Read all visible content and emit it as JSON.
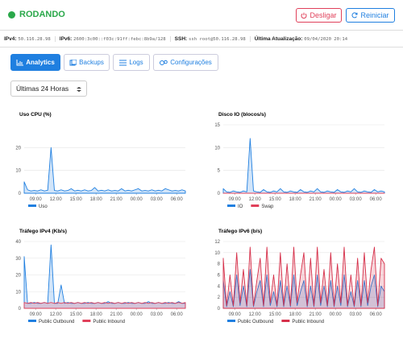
{
  "header": {
    "status": "RODANDO",
    "buttons": [
      "Desligar",
      "Reiniciar"
    ]
  },
  "info": [
    {
      "label": "IPv4:",
      "value": "50.116.28.98"
    },
    {
      "label": "IPv6:",
      "value": "2600:3c00::f03c:91ff:febc:8b9a/128"
    },
    {
      "label": "SSH:",
      "value": "ssh root@50.116.28.98"
    },
    {
      "label": "Última Atualização:",
      "value": "09/04/2020 20:14"
    }
  ],
  "tabs": [
    "Analytics",
    "Backups",
    "Logs",
    "Configurações"
  ],
  "range": "Últimas 24 Horas",
  "chart_data": [
    {
      "type": "area",
      "title": "Uso CPU (%)",
      "x": [
        0,
        0.5,
        1,
        1.5,
        2,
        2.5,
        3,
        3.5,
        4,
        4.5,
        5,
        5.5,
        6,
        6.5,
        7,
        7.5,
        8,
        8.5,
        9,
        9.5,
        10,
        10.5,
        11,
        11.5,
        12,
        12.5,
        13,
        13.5,
        14,
        14.5,
        15,
        15.5,
        16,
        16.5,
        17,
        17.5,
        18,
        18.5,
        19,
        19.5,
        20,
        20.5,
        21,
        21.5,
        22,
        22.5,
        23,
        23.5,
        24
      ],
      "xlim": [
        0,
        24
      ],
      "xticks": [
        {
          "value": 1.7,
          "label": "09:00"
        },
        {
          "value": 4.7,
          "label": "12:00"
        },
        {
          "value": 7.7,
          "label": "15:00"
        },
        {
          "value": 10.7,
          "label": "18:00"
        },
        {
          "value": 13.7,
          "label": "21:00"
        },
        {
          "value": 16.7,
          "label": "00:00"
        },
        {
          "value": 19.7,
          "label": "03:00"
        },
        {
          "value": 22.7,
          "label": "06:00"
        }
      ],
      "ylim": [
        0,
        30
      ],
      "yticks": [
        0,
        10,
        20
      ],
      "grid": true,
      "series": [
        {
          "name": "Uso",
          "color": "#1f7fe0",
          "values": [
            5,
            1.5,
            1,
            1.2,
            1,
            1.5,
            1,
            1.3,
            20,
            1.2,
            1,
            1.5,
            1,
            1.2,
            2,
            1,
            1.3,
            1,
            1.5,
            1,
            1.2,
            2.5,
            1,
            1.3,
            1,
            1.5,
            1,
            1.2,
            1,
            2,
            1,
            1.3,
            1,
            1.5,
            2,
            1,
            1.2,
            1,
            1.5,
            1,
            1.3,
            1,
            2,
            1.5,
            1,
            1.2,
            1,
            1.5,
            1
          ]
        }
      ]
    },
    {
      "type": "area",
      "title": "Disco IO (blocos/s)",
      "x": [
        0,
        0.5,
        1,
        1.5,
        2,
        2.5,
        3,
        3.5,
        4,
        4.5,
        5,
        5.5,
        6,
        6.5,
        7,
        7.5,
        8,
        8.5,
        9,
        9.5,
        10,
        10.5,
        11,
        11.5,
        12,
        12.5,
        13,
        13.5,
        14,
        14.5,
        15,
        15.5,
        16,
        16.5,
        17,
        17.5,
        18,
        18.5,
        19,
        19.5,
        20,
        20.5,
        21,
        21.5,
        22,
        22.5,
        23,
        23.5,
        24
      ],
      "xlim": [
        0,
        24
      ],
      "xticks": [
        {
          "value": 1.7,
          "label": "09:00"
        },
        {
          "value": 4.7,
          "label": "12:00"
        },
        {
          "value": 7.7,
          "label": "15:00"
        },
        {
          "value": 10.7,
          "label": "18:00"
        },
        {
          "value": 13.7,
          "label": "21:00"
        },
        {
          "value": 16.7,
          "label": "00:00"
        },
        {
          "value": 19.7,
          "label": "03:00"
        },
        {
          "value": 22.7,
          "label": "06:00"
        }
      ],
      "ylim": [
        0,
        15
      ],
      "yticks": [
        0,
        5,
        10,
        15
      ],
      "grid": true,
      "series": [
        {
          "name": "IO",
          "color": "#1f7fe0",
          "values": [
            1,
            0.3,
            0.2,
            0.5,
            0.3,
            0.2,
            0.5,
            0.3,
            12,
            0.5,
            0.3,
            0.2,
            0.8,
            0.3,
            0.2,
            0.5,
            0.3,
            1,
            0.3,
            0.2,
            0.5,
            0.3,
            0.2,
            0.8,
            0.3,
            0.2,
            0.5,
            0.3,
            1,
            0.3,
            0.2,
            0.5,
            0.3,
            0.2,
            0.8,
            0.3,
            0.2,
            0.5,
            0.3,
            1,
            0.3,
            0.2,
            0.5,
            0.3,
            0.2,
            0.8,
            0.3,
            0.5,
            0.3
          ]
        },
        {
          "name": "Swap",
          "color": "#e0405a",
          "values": [
            0,
            0,
            0,
            0,
            0,
            0,
            0,
            0,
            0,
            0,
            0,
            0,
            0,
            0,
            0,
            0,
            0,
            0,
            0,
            0,
            0,
            0,
            0,
            0,
            0,
            0,
            0,
            0,
            0,
            0,
            0,
            0,
            0,
            0,
            0,
            0,
            0,
            0,
            0,
            0,
            0,
            0,
            0,
            0,
            0,
            0,
            0,
            0,
            0
          ]
        }
      ]
    },
    {
      "type": "area",
      "title": "Tráfego IPv4 (Kb/s)",
      "x": [
        0,
        0.5,
        1,
        1.5,
        2,
        2.5,
        3,
        3.5,
        4,
        4.5,
        5,
        5.5,
        6,
        6.5,
        7,
        7.5,
        8,
        8.5,
        9,
        9.5,
        10,
        10.5,
        11,
        11.5,
        12,
        12.5,
        13,
        13.5,
        14,
        14.5,
        15,
        15.5,
        16,
        16.5,
        17,
        17.5,
        18,
        18.5,
        19,
        19.5,
        20,
        20.5,
        21,
        21.5,
        22,
        22.5,
        23,
        23.5,
        24
      ],
      "xlim": [
        0,
        24
      ],
      "xticks": [
        {
          "value": 1.7,
          "label": "09:00"
        },
        {
          "value": 4.7,
          "label": "12:00"
        },
        {
          "value": 7.7,
          "label": "15:00"
        },
        {
          "value": 10.7,
          "label": "18:00"
        },
        {
          "value": 13.7,
          "label": "21:00"
        },
        {
          "value": 16.7,
          "label": "00:00"
        },
        {
          "value": 19.7,
          "label": "03:00"
        },
        {
          "value": 22.7,
          "label": "06:00"
        }
      ],
      "ylim": [
        0,
        40
      ],
      "yticks": [
        0,
        10,
        20,
        30,
        40
      ],
      "grid": true,
      "series": [
        {
          "name": "Public Outbound",
          "color": "#1f7fe0",
          "values": [
            31,
            3,
            3,
            3.5,
            3,
            3,
            3.5,
            3,
            38,
            3,
            3,
            14,
            3,
            3.5,
            3,
            3,
            3.5,
            3,
            3,
            3.5,
            3,
            3,
            3.5,
            3,
            3,
            4,
            3,
            3,
            3.5,
            3,
            3,
            3.5,
            3,
            3,
            3.5,
            3,
            3,
            4,
            3,
            3,
            3.5,
            3,
            3,
            3.5,
            3,
            3,
            4,
            3,
            3
          ]
        },
        {
          "name": "Public Inbound",
          "color": "#e0405a",
          "values": [
            3.5,
            3,
            3.5,
            3,
            3.5,
            3,
            3.5,
            3,
            3.5,
            3,
            3.5,
            3,
            3.5,
            3,
            3.5,
            3,
            3.5,
            3,
            3.5,
            3,
            3.5,
            3,
            3.5,
            3,
            3.5,
            3,
            3.5,
            3,
            3.5,
            3,
            3.5,
            3,
            3.5,
            3,
            3.5,
            3,
            3.5,
            3,
            3.5,
            3,
            3.5,
            3,
            3.5,
            3,
            3.5,
            3,
            3.5,
            3,
            3.5
          ]
        }
      ]
    },
    {
      "type": "area",
      "title": "Tráfego IPv6 (b/s)",
      "x": [
        0,
        0.5,
        1,
        1.5,
        2,
        2.5,
        3,
        3.5,
        4,
        4.5,
        5,
        5.5,
        6,
        6.5,
        7,
        7.5,
        8,
        8.5,
        9,
        9.5,
        10,
        10.5,
        11,
        11.5,
        12,
        12.5,
        13,
        13.5,
        14,
        14.5,
        15,
        15.5,
        16,
        16.5,
        17,
        17.5,
        18,
        18.5,
        19,
        19.5,
        20,
        20.5,
        21,
        21.5,
        22,
        22.5,
        23,
        23.5,
        24
      ],
      "xlim": [
        0,
        24
      ],
      "xticks": [
        {
          "value": 1.7,
          "label": "09:00"
        },
        {
          "value": 4.7,
          "label": "12:00"
        },
        {
          "value": 7.7,
          "label": "15:00"
        },
        {
          "value": 10.7,
          "label": "18:00"
        },
        {
          "value": 13.7,
          "label": "21:00"
        },
        {
          "value": 16.7,
          "label": "00:00"
        },
        {
          "value": 19.7,
          "label": "03:00"
        },
        {
          "value": 22.7,
          "label": "06:00"
        }
      ],
      "ylim": [
        0,
        12
      ],
      "yticks": [
        0,
        2,
        4,
        6,
        8,
        10,
        12
      ],
      "grid": true,
      "series": [
        {
          "name": "Public Outbound",
          "color": "#1f7fe0",
          "values": [
            5,
            0.3,
            3,
            0.3,
            6,
            0.5,
            4,
            0.3,
            7,
            0.3,
            3,
            5,
            0.3,
            6,
            0.5,
            3,
            0.3,
            5,
            0.3,
            4,
            0.3,
            6,
            0.5,
            3,
            5,
            0.3,
            4,
            0.3,
            6,
            0.5,
            4,
            0.3,
            5,
            0.3,
            4,
            0.5,
            6,
            0.3,
            3,
            0.3,
            5,
            0.3,
            5,
            0.5,
            4,
            6,
            0.3,
            4,
            3
          ]
        },
        {
          "name": "Public Inbound",
          "color": "#d6304a",
          "values": [
            9,
            0.5,
            6,
            0.5,
            10,
            1,
            7,
            0.5,
            11,
            0.5,
            5,
            9,
            0.5,
            11,
            1,
            6,
            0.5,
            10,
            0.5,
            8,
            0.5,
            11,
            1,
            6,
            10,
            0.5,
            9,
            0.5,
            11,
            1,
            7,
            0.5,
            10,
            0.5,
            8,
            1,
            11,
            0.5,
            6,
            0.5,
            9,
            0.5,
            10,
            1,
            7,
            11,
            0.5,
            9,
            8
          ]
        }
      ]
    }
  ]
}
